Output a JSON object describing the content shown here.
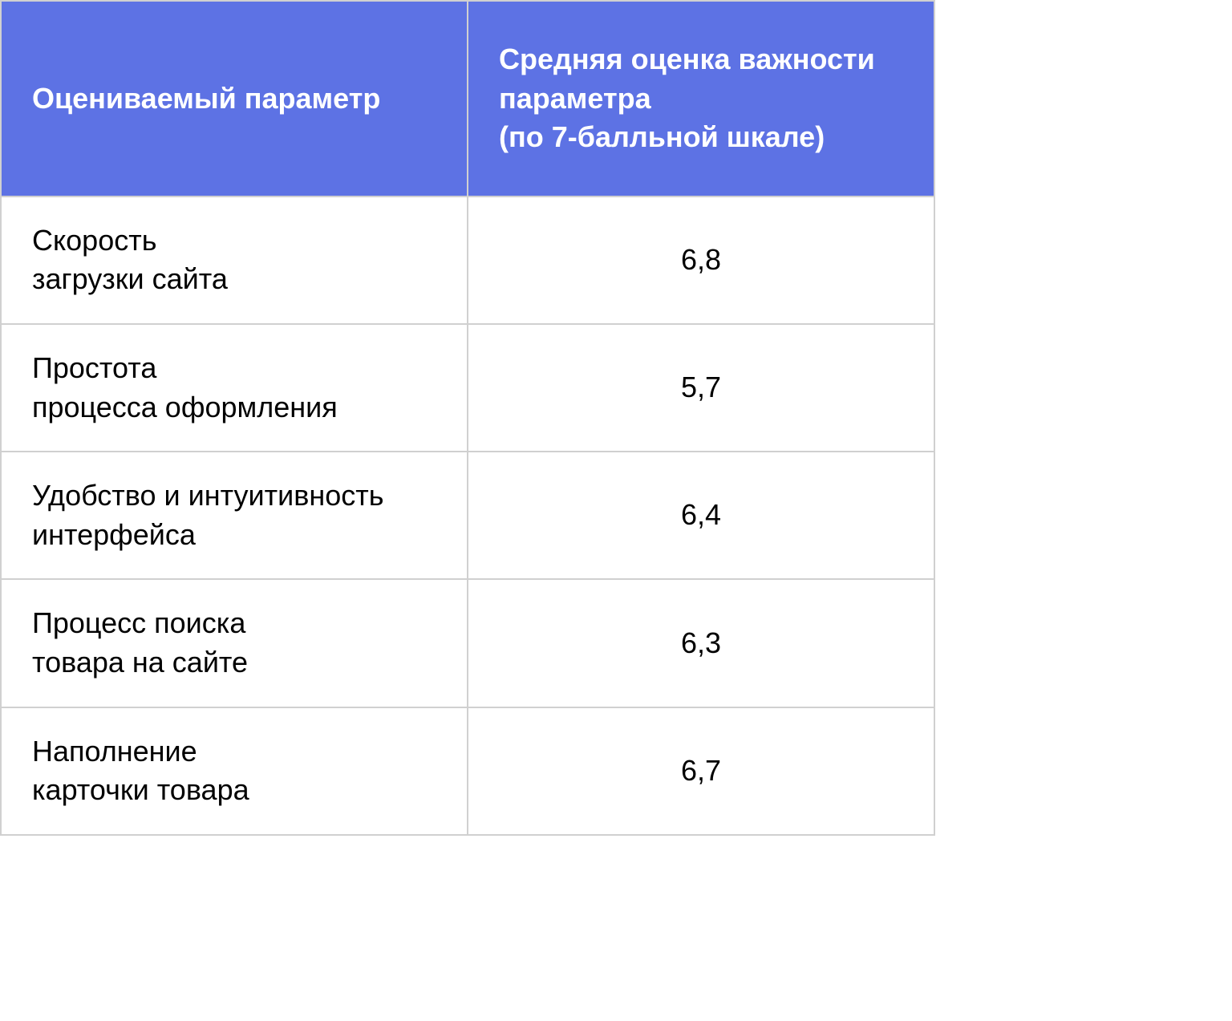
{
  "table": {
    "type": "table",
    "header_bg_color": "#5d72e4",
    "header_text_color": "#ffffff",
    "cell_text_color": "#000000",
    "border_color": "#d0d0d0",
    "background_color": "#ffffff",
    "font_size_header": 36,
    "font_size_cell": 36,
    "font_weight_header": 700,
    "font_weight_cell": 400,
    "columns": [
      {
        "label": "Оцениваемый параметр",
        "align": "left",
        "width_pct": 50
      },
      {
        "label": "Средняя оценка важности параметра\n(по 7-балльной шкале)",
        "align": "center",
        "width_pct": 50
      }
    ],
    "rows": [
      {
        "param": "Скорость\nзагрузки сайта",
        "value": "6,8"
      },
      {
        "param": "Простота\nпроцесса оформления",
        "value": "5,7"
      },
      {
        "param": "Удобство и интуитивность\nинтерфейса",
        "value": "6,4"
      },
      {
        "param": "Процесс поиска\nтовара на сайте",
        "value": "6,3"
      },
      {
        "param": "Наполнение\nкарточки товара",
        "value": "6,7"
      }
    ]
  }
}
